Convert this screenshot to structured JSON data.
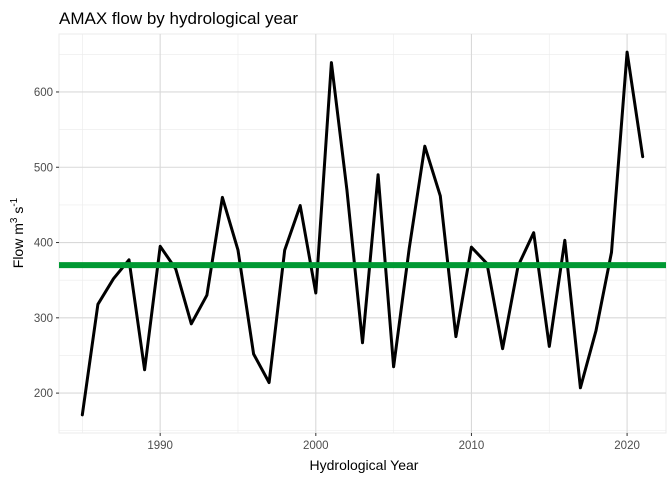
{
  "chart_data": {
    "type": "line",
    "title": "AMAX flow by hydrological year",
    "xlabel": "Hydrological Year",
    "ylabel": {
      "base": "Flow m",
      "exp1": "3",
      "mid": " s",
      "exp2": "-1"
    },
    "xlim": [
      1983.5,
      2022.5
    ],
    "ylim": [
      147,
      677
    ],
    "xticks": [
      1990,
      2000,
      2010,
      2020
    ],
    "yticks": [
      200,
      300,
      400,
      500,
      600
    ],
    "grid": true,
    "series": [
      {
        "color": "#000000",
        "x": [
          1985,
          1986,
          1987,
          1988,
          1989,
          1990,
          1991,
          1992,
          1993,
          1994,
          1995,
          1996,
          1997,
          1998,
          1999,
          2000,
          2001,
          2002,
          2003,
          2004,
          2005,
          2006,
          2007,
          2008,
          2009,
          2010,
          2011,
          2012,
          2013,
          2014,
          2015,
          2016,
          2017,
          2018,
          2019,
          2020,
          2021
        ],
        "values": [
          171,
          318,
          352,
          377,
          231,
          395,
          365,
          292,
          330,
          460,
          390,
          252,
          214,
          390,
          449,
          333,
          639,
          470,
          267,
          490,
          235,
          392,
          528,
          462,
          275,
          394,
          372,
          259,
          369,
          413,
          262,
          403,
          207,
          283,
          387,
          653,
          514
        ]
      }
    ],
    "hline": {
      "value": 370,
      "color": "#009933"
    }
  }
}
